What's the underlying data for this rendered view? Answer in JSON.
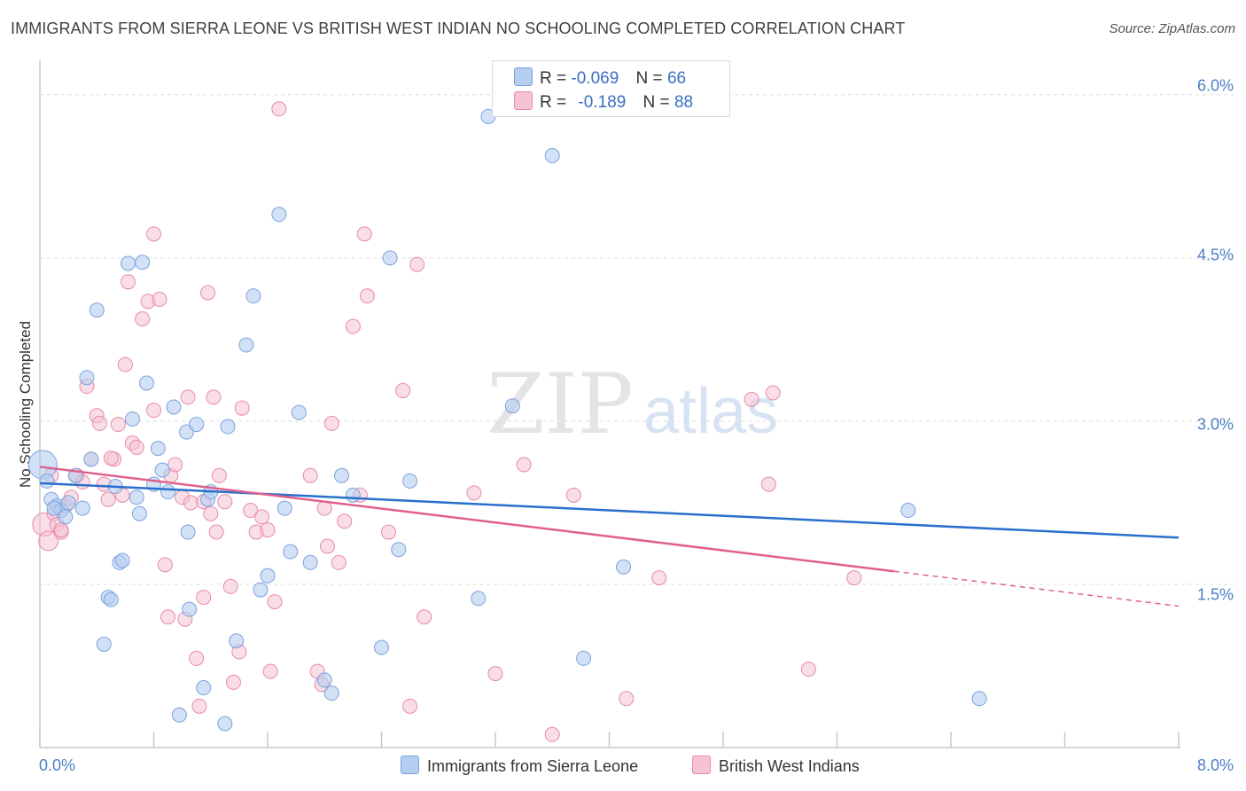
{
  "title": "IMMIGRANTS FROM SIERRA LEONE VS BRITISH WEST INDIAN NO SCHOOLING COMPLETED CORRELATION CHART",
  "source": "Source: ZipAtlas.com",
  "watermark": {
    "zip": "ZIP",
    "atlas": "atlas"
  },
  "legend": {
    "series1": {
      "r_label": "R =",
      "r_value": "-0.069",
      "n_label": "N =",
      "n_value": "66"
    },
    "series2": {
      "r_label": "R =",
      "r_value": "-0.189",
      "n_label": "N =",
      "n_value": "88"
    }
  },
  "bottom_legend": {
    "series1": "Immigrants from Sierra Leone",
    "series2": "British West Indians"
  },
  "colors": {
    "blue_fill": "#b4cdf0",
    "blue_stroke": "#7aa3dd",
    "blue_line": "#2a6fcb",
    "pink_fill": "#f6c3d3",
    "pink_stroke": "#e88aa8",
    "pink_line": "#e0608c",
    "tick_text": "#4a7fc6",
    "grid": "#dcdcdc"
  },
  "chart_data": {
    "type": "scatter",
    "title": "IMMIGRANTS FROM SIERRA LEONE VS BRITISH WEST INDIAN NO SCHOOLING COMPLETED CORRELATION CHART",
    "xlabel": "",
    "ylabel": "No Schooling Completed",
    "xlim": [
      0,
      8
    ],
    "ylim": [
      0,
      6.3
    ],
    "x_tick_labels": [
      "0.0%",
      "8.0%"
    ],
    "y_ticks": [
      1.5,
      3.0,
      4.5,
      6.0
    ],
    "y_tick_labels": [
      "1.5%",
      "3.0%",
      "4.5%",
      "6.0%"
    ],
    "grid": true,
    "legend_position": "top-center",
    "series": [
      {
        "name": "Immigrants from Sierra Leone",
        "color": "#7aa3dd",
        "R": -0.069,
        "N": 66,
        "trend": {
          "x0": 0.0,
          "y0": 2.43,
          "x1": 8.0,
          "y1": 1.93
        },
        "points": [
          [
            0.02,
            2.6
          ],
          [
            0.05,
            2.45
          ],
          [
            0.08,
            2.28
          ],
          [
            0.12,
            2.22
          ],
          [
            0.15,
            2.18
          ],
          [
            0.18,
            2.12
          ],
          [
            0.2,
            2.25
          ],
          [
            0.25,
            2.5
          ],
          [
            0.3,
            2.2
          ],
          [
            0.33,
            3.4
          ],
          [
            0.36,
            2.65
          ],
          [
            0.4,
            4.02
          ],
          [
            0.45,
            0.95
          ],
          [
            0.48,
            1.38
          ],
          [
            0.5,
            1.36
          ],
          [
            0.53,
            2.4
          ],
          [
            0.56,
            1.7
          ],
          [
            0.58,
            1.72
          ],
          [
            0.62,
            4.45
          ],
          [
            0.65,
            3.02
          ],
          [
            0.68,
            2.3
          ],
          [
            0.7,
            2.15
          ],
          [
            0.72,
            4.46
          ],
          [
            0.75,
            3.35
          ],
          [
            0.8,
            2.42
          ],
          [
            0.83,
            2.75
          ],
          [
            0.86,
            2.55
          ],
          [
            0.9,
            2.35
          ],
          [
            0.94,
            3.13
          ],
          [
            0.98,
            0.3
          ],
          [
            1.03,
            2.9
          ],
          [
            1.05,
            1.27
          ],
          [
            1.1,
            2.97
          ],
          [
            1.15,
            0.55
          ],
          [
            1.18,
            2.28
          ],
          [
            1.2,
            2.35
          ],
          [
            1.3,
            0.22
          ],
          [
            1.32,
            2.95
          ],
          [
            1.38,
            0.98
          ],
          [
            1.45,
            3.7
          ],
          [
            1.5,
            4.15
          ],
          [
            1.55,
            1.45
          ],
          [
            1.6,
            1.58
          ],
          [
            1.68,
            4.9
          ],
          [
            1.72,
            2.2
          ],
          [
            1.76,
            1.8
          ],
          [
            1.82,
            3.08
          ],
          [
            1.9,
            1.7
          ],
          [
            2.0,
            0.62
          ],
          [
            2.05,
            0.5
          ],
          [
            2.2,
            2.32
          ],
          [
            2.4,
            0.92
          ],
          [
            2.46,
            4.5
          ],
          [
            2.52,
            1.82
          ],
          [
            2.6,
            2.45
          ],
          [
            3.08,
            1.37
          ],
          [
            3.15,
            5.8
          ],
          [
            3.32,
            3.14
          ],
          [
            3.6,
            5.44
          ],
          [
            3.82,
            0.82
          ],
          [
            4.1,
            1.66
          ],
          [
            6.1,
            2.18
          ],
          [
            6.6,
            0.45
          ],
          [
            0.1,
            2.2
          ],
          [
            1.04,
            1.98
          ],
          [
            2.12,
            2.5
          ]
        ]
      },
      {
        "name": "British West Indians",
        "color": "#e88aa8",
        "R": -0.189,
        "N": 88,
        "trend": {
          "x0": 0.0,
          "y0": 2.58,
          "x1": 6.0,
          "y1": 1.62
        },
        "trend_dashed_extension": {
          "x0": 6.0,
          "y0": 1.62,
          "x1": 8.0,
          "y1": 1.3
        },
        "points": [
          [
            0.03,
            2.05
          ],
          [
            0.06,
            1.9
          ],
          [
            0.08,
            2.5
          ],
          [
            0.1,
            2.15
          ],
          [
            0.12,
            2.05
          ],
          [
            0.15,
            1.98
          ],
          [
            0.18,
            2.22
          ],
          [
            0.22,
            2.3
          ],
          [
            0.26,
            2.5
          ],
          [
            0.3,
            2.44
          ],
          [
            0.33,
            3.32
          ],
          [
            0.36,
            2.65
          ],
          [
            0.4,
            3.05
          ],
          [
            0.42,
            2.98
          ],
          [
            0.45,
            2.42
          ],
          [
            0.48,
            2.28
          ],
          [
            0.52,
            2.65
          ],
          [
            0.55,
            2.97
          ],
          [
            0.58,
            2.32
          ],
          [
            0.6,
            3.52
          ],
          [
            0.62,
            4.28
          ],
          [
            0.65,
            2.8
          ],
          [
            0.68,
            2.76
          ],
          [
            0.72,
            3.94
          ],
          [
            0.76,
            4.1
          ],
          [
            0.8,
            3.1
          ],
          [
            0.8,
            4.72
          ],
          [
            0.84,
            4.12
          ],
          [
            0.88,
            1.68
          ],
          [
            0.9,
            1.2
          ],
          [
            0.92,
            2.5
          ],
          [
            0.95,
            2.6
          ],
          [
            1.0,
            2.3
          ],
          [
            1.02,
            1.18
          ],
          [
            1.04,
            3.22
          ],
          [
            1.06,
            2.25
          ],
          [
            1.1,
            0.82
          ],
          [
            1.12,
            0.38
          ],
          [
            1.15,
            1.38
          ],
          [
            1.18,
            4.18
          ],
          [
            1.2,
            2.15
          ],
          [
            1.22,
            3.22
          ],
          [
            1.24,
            1.98
          ],
          [
            1.26,
            2.5
          ],
          [
            1.3,
            2.26
          ],
          [
            1.34,
            1.48
          ],
          [
            1.36,
            0.6
          ],
          [
            1.4,
            0.88
          ],
          [
            1.42,
            3.12
          ],
          [
            1.48,
            2.18
          ],
          [
            1.52,
            1.98
          ],
          [
            1.56,
            2.12
          ],
          [
            1.6,
            2.0
          ],
          [
            1.62,
            0.7
          ],
          [
            1.65,
            1.34
          ],
          [
            1.68,
            5.87
          ],
          [
            1.9,
            2.5
          ],
          [
            1.95,
            0.7
          ],
          [
            1.98,
            0.58
          ],
          [
            2.02,
            1.85
          ],
          [
            2.05,
            2.98
          ],
          [
            2.1,
            1.7
          ],
          [
            2.14,
            2.08
          ],
          [
            2.2,
            3.87
          ],
          [
            2.25,
            2.32
          ],
          [
            2.3,
            4.15
          ],
          [
            2.28,
            4.72
          ],
          [
            2.45,
            1.98
          ],
          [
            2.55,
            3.28
          ],
          [
            2.6,
            0.38
          ],
          [
            2.65,
            4.44
          ],
          [
            2.7,
            1.2
          ],
          [
            3.05,
            2.34
          ],
          [
            3.2,
            0.68
          ],
          [
            3.4,
            2.6
          ],
          [
            3.6,
            0.12
          ],
          [
            3.75,
            2.32
          ],
          [
            4.12,
            0.45
          ],
          [
            4.35,
            1.56
          ],
          [
            5.0,
            3.2
          ],
          [
            5.12,
            2.42
          ],
          [
            5.15,
            3.26
          ],
          [
            5.4,
            0.72
          ],
          [
            5.72,
            1.56
          ],
          [
            0.15,
            2.0
          ],
          [
            0.5,
            2.66
          ],
          [
            1.15,
            2.26
          ],
          [
            2.0,
            2.2
          ]
        ]
      }
    ]
  }
}
